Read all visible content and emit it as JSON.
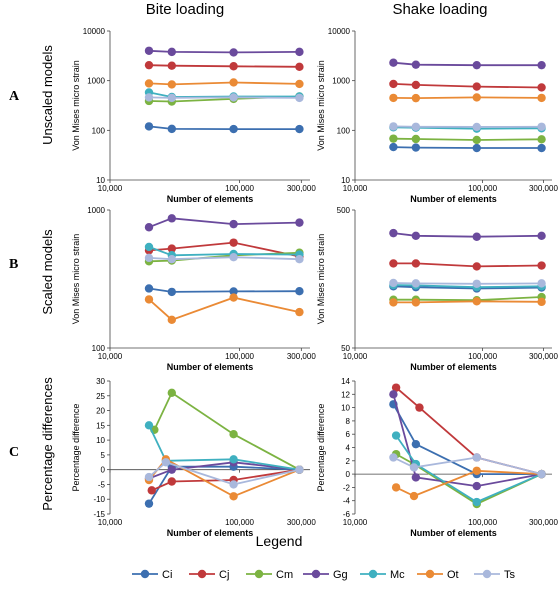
{
  "column_titles": [
    "Bite loading",
    "Shake loading"
  ],
  "rows": [
    {
      "letter": "A",
      "label": "Unscaled models"
    },
    {
      "letter": "B",
      "label": "Scaled models"
    },
    {
      "letter": "C",
      "label": "Percentage differences"
    }
  ],
  "legend": {
    "title": "Legend"
  },
  "colors": {
    "Ci": "#3c6fb0",
    "Cj": "#c0393b",
    "Cm": "#7cb342",
    "Gg": "#6a4a9c",
    "Mc": "#3fb0c0",
    "Ot": "#ea8a35",
    "Ts": "#a9b8dc"
  },
  "chart_data": [
    {
      "id": "A-bite",
      "type": "line",
      "xscale": "log",
      "yscale": "log",
      "xlim": [
        10000,
        350000
      ],
      "ylim": [
        10,
        10000
      ],
      "xticks": [
        10000,
        100000,
        300000
      ],
      "xtick_labels": [
        "10,000",
        "100,000",
        "300,000"
      ],
      "yticks": [
        10,
        100,
        1000,
        10000
      ],
      "ytick_labels": [
        "10",
        "100",
        "1000",
        "10000"
      ],
      "xlabel": "Number of elements",
      "ylabel": "Von Mises micro strain",
      "series": [
        {
          "name": "Ci",
          "x": [
            20000,
            30000,
            90000,
            290000
          ],
          "y": [
            120,
            107,
            106,
            106
          ]
        },
        {
          "name": "Cj",
          "x": [
            20000,
            30000,
            90000,
            290000
          ],
          "y": [
            2050,
            2000,
            1950,
            1900
          ]
        },
        {
          "name": "Cm",
          "x": [
            20000,
            30000,
            90000,
            290000
          ],
          "y": [
            390,
            380,
            430,
            480
          ]
        },
        {
          "name": "Gg",
          "x": [
            20000,
            30000,
            90000,
            290000
          ],
          "y": [
            4000,
            3800,
            3700,
            3800
          ]
        },
        {
          "name": "Mc",
          "x": [
            20000,
            30000,
            90000,
            290000
          ],
          "y": [
            580,
            470,
            480,
            480
          ]
        },
        {
          "name": "Ot",
          "x": [
            20000,
            30000,
            90000,
            290000
          ],
          "y": [
            880,
            840,
            920,
            860
          ]
        },
        {
          "name": "Ts",
          "x": [
            20000,
            30000,
            90000,
            290000
          ],
          "y": [
            460,
            450,
            460,
            450
          ]
        }
      ]
    },
    {
      "id": "A-shake",
      "type": "line",
      "xscale": "log",
      "yscale": "log",
      "xlim": [
        10000,
        350000
      ],
      "ylim": [
        10,
        10000
      ],
      "xticks": [
        10000,
        100000,
        300000
      ],
      "xtick_labels": [
        "10,000",
        "100,000",
        "300,000"
      ],
      "yticks": [
        10,
        100,
        1000,
        10000
      ],
      "ytick_labels": [
        "10",
        "100",
        "1000",
        "10000"
      ],
      "xlabel": "Number of elements",
      "ylabel": "Von Mises micro strain",
      "series": [
        {
          "name": "Ci",
          "x": [
            20000,
            30000,
            90000,
            290000
          ],
          "y": [
            46,
            45,
            44,
            44
          ]
        },
        {
          "name": "Cj",
          "x": [
            20000,
            30000,
            90000,
            290000
          ],
          "y": [
            860,
            820,
            760,
            730
          ]
        },
        {
          "name": "Cm",
          "x": [
            20000,
            30000,
            90000,
            290000
          ],
          "y": [
            68,
            67,
            64,
            66
          ]
        },
        {
          "name": "Gg",
          "x": [
            20000,
            30000,
            90000,
            290000
          ],
          "y": [
            2300,
            2100,
            2050,
            2050
          ]
        },
        {
          "name": "Mc",
          "x": [
            20000,
            30000,
            90000,
            290000
          ],
          "y": [
            115,
            113,
            108,
            110
          ]
        },
        {
          "name": "Ot",
          "x": [
            20000,
            30000,
            90000,
            290000
          ],
          "y": [
            450,
            445,
            460,
            450
          ]
        },
        {
          "name": "Ts",
          "x": [
            20000,
            30000,
            90000,
            290000
          ],
          "y": [
            120,
            118,
            117,
            118
          ]
        }
      ]
    },
    {
      "id": "B-bite",
      "type": "line",
      "xscale": "log",
      "yscale": "log",
      "xlim": [
        10000,
        350000
      ],
      "ylim": [
        100,
        1000
      ],
      "xticks": [
        10000,
        100000,
        300000
      ],
      "xtick_labels": [
        "10,000",
        "100,000",
        "300,000"
      ],
      "yticks": [
        100,
        1000
      ],
      "ytick_labels": [
        "100",
        "1000"
      ],
      "xlabel": "Number of elements",
      "ylabel": "Von Mises micro strain",
      "series": [
        {
          "name": "Ci",
          "x": [
            20000,
            30000,
            90000,
            290000
          ],
          "y": [
            270,
            255,
            257,
            258
          ]
        },
        {
          "name": "Cj",
          "x": [
            20000,
            30000,
            90000,
            290000
          ],
          "y": [
            510,
            525,
            580,
            460
          ]
        },
        {
          "name": "Cm",
          "x": [
            20000,
            30000,
            90000,
            290000
          ],
          "y": [
            425,
            430,
            470,
            490
          ]
        },
        {
          "name": "Gg",
          "x": [
            20000,
            30000,
            90000,
            290000
          ],
          "y": [
            750,
            870,
            790,
            810
          ]
        },
        {
          "name": "Mc",
          "x": [
            20000,
            30000,
            90000,
            290000
          ],
          "y": [
            540,
            470,
            480,
            475
          ]
        },
        {
          "name": "Ot",
          "x": [
            20000,
            30000,
            90000,
            290000
          ],
          "y": [
            225,
            160,
            232,
            182
          ]
        },
        {
          "name": "Ts",
          "x": [
            20000,
            30000,
            90000,
            290000
          ],
          "y": [
            450,
            440,
            455,
            440
          ]
        }
      ]
    },
    {
      "id": "B-shake",
      "type": "line",
      "xscale": "log",
      "yscale": "log",
      "xlim": [
        10000,
        350000
      ],
      "ylim": [
        50,
        500
      ],
      "xticks": [
        10000,
        100000,
        300000
      ],
      "xtick_labels": [
        "10,000",
        "100,000",
        "300,000"
      ],
      "yticks": [
        50,
        500
      ],
      "ytick_labels": [
        "50",
        "500"
      ],
      "xlabel": "Number of elements",
      "ylabel": "Von Mises micro strain",
      "series": [
        {
          "name": "Ci",
          "x": [
            20000,
            30000,
            90000,
            290000
          ],
          "y": [
            140,
            138,
            135,
            137
          ]
        },
        {
          "name": "Cj",
          "x": [
            20000,
            30000,
            90000,
            290000
          ],
          "y": [
            205,
            205,
            195,
            198
          ]
        },
        {
          "name": "Cm",
          "x": [
            20000,
            30000,
            90000,
            290000
          ],
          "y": [
            112,
            112,
            111,
            117
          ]
        },
        {
          "name": "Gg",
          "x": [
            20000,
            30000,
            90000,
            290000
          ],
          "y": [
            340,
            325,
            320,
            325
          ]
        },
        {
          "name": "Mc",
          "x": [
            20000,
            30000,
            90000,
            290000
          ],
          "y": [
            143,
            142,
            138,
            140
          ]
        },
        {
          "name": "Ot",
          "x": [
            20000,
            30000,
            90000,
            290000
          ],
          "y": [
            107,
            107,
            109,
            108
          ]
        },
        {
          "name": "Ts",
          "x": [
            20000,
            30000,
            90000,
            290000
          ],
          "y": [
            148,
            147,
            146,
            147
          ]
        }
      ]
    },
    {
      "id": "C-bite",
      "type": "line",
      "xscale": "log",
      "yscale": "linear",
      "xlim": [
        10000,
        350000
      ],
      "ylim": [
        -15,
        30
      ],
      "xticks": [
        10000,
        100000,
        300000
      ],
      "xtick_labels": [
        "10,000",
        "100,000",
        "300,000"
      ],
      "yticks": [
        -15,
        -10,
        -5,
        0,
        5,
        10,
        15,
        20,
        25,
        30
      ],
      "ytick_labels": [
        "-15",
        "-10",
        "-5",
        "0",
        "5",
        "10",
        "15",
        "20",
        "25",
        "30"
      ],
      "xlabel": "Number of elements",
      "ylabel": "Percentage difference",
      "series": [
        {
          "name": "Ci",
          "x": [
            20000,
            30000,
            90000,
            290000
          ],
          "y": [
            -11.5,
            1,
            1,
            0
          ]
        },
        {
          "name": "Cj",
          "x": [
            21000,
            30000,
            90000,
            290000
          ],
          "y": [
            -7,
            -4,
            -3.5,
            0
          ]
        },
        {
          "name": "Cm",
          "x": [
            22000,
            30000,
            90000,
            290000
          ],
          "y": [
            13.5,
            26,
            12,
            0
          ]
        },
        {
          "name": "Gg",
          "x": [
            20000,
            30000,
            90000,
            290000
          ],
          "y": [
            -3,
            0,
            2.5,
            0
          ]
        },
        {
          "name": "Mc",
          "x": [
            20000,
            27000,
            90000,
            290000
          ],
          "y": [
            15,
            3,
            3.5,
            0
          ]
        },
        {
          "name": "Ot",
          "x": [
            20000,
            27000,
            90000,
            290000
          ],
          "y": [
            -3.5,
            3.5,
            -9,
            0
          ]
        },
        {
          "name": "Ts",
          "x": [
            20000,
            27000,
            90000,
            290000
          ],
          "y": [
            -2.5,
            2.5,
            -5,
            0
          ]
        }
      ]
    },
    {
      "id": "C-shake",
      "type": "line",
      "xscale": "log",
      "yscale": "linear",
      "xlim": [
        10000,
        350000
      ],
      "ylim": [
        -6,
        14
      ],
      "xticks": [
        10000,
        100000,
        300000
      ],
      "xtick_labels": [
        "10,000",
        "100,000",
        "300,000"
      ],
      "yticks": [
        -6,
        -4,
        -2,
        0,
        2,
        4,
        6,
        8,
        10,
        12,
        14
      ],
      "ytick_labels": [
        "-6",
        "-4",
        "-2",
        "0",
        "2",
        "4",
        "6",
        "8",
        "10",
        "12",
        "14"
      ],
      "xlabel": "Number of elements",
      "ylabel": "Percentage difference",
      "series": [
        {
          "name": "Ci",
          "x": [
            20000,
            30000,
            90000,
            290000
          ],
          "y": [
            10.5,
            4.5,
            0,
            0
          ]
        },
        {
          "name": "Cj",
          "x": [
            21000,
            32000,
            90000,
            290000
          ],
          "y": [
            13,
            10,
            2.5,
            0
          ]
        },
        {
          "name": "Cm",
          "x": [
            21000,
            29000,
            90000,
            290000
          ],
          "y": [
            3,
            1.5,
            -4.5,
            0
          ]
        },
        {
          "name": "Gg",
          "x": [
            20000,
            30000,
            90000,
            290000
          ],
          "y": [
            12,
            -0.5,
            -1.8,
            0
          ]
        },
        {
          "name": "Mc",
          "x": [
            21000,
            30000,
            90000,
            290000
          ],
          "y": [
            5.8,
            1.5,
            -4.2,
            0
          ]
        },
        {
          "name": "Ot",
          "x": [
            21000,
            29000,
            90000,
            290000
          ],
          "y": [
            -2,
            -3.3,
            0.5,
            0
          ]
        },
        {
          "name": "Ts",
          "x": [
            20000,
            29000,
            90000,
            290000
          ],
          "y": [
            2.5,
            1,
            2.5,
            0
          ]
        }
      ]
    }
  ]
}
